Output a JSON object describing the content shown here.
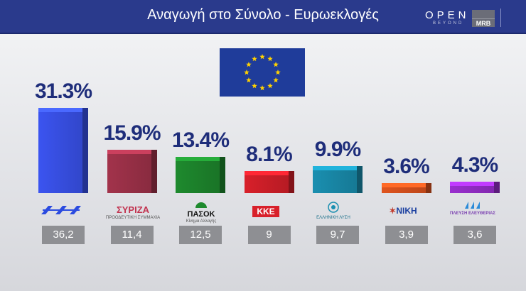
{
  "title": "Αναγωγή στο Σύνολο - Ευρωεκλογές",
  "broadcaster": {
    "name": "OPEN",
    "tagline": "BEYOND",
    "partner": "MRB"
  },
  "logos": {
    "nd": "",
    "syriza": "ΣΥΡΙΖΑ",
    "syriza_sub": "ΠΡΟΟΔΕΥΤΙΚΗ ΣΥΜΜΑΧΙΑ",
    "pasok": "ΠΑΣΟΚ",
    "pasok_sub": "Κίνημα Αλλαγής",
    "kke": "ΚΚΕ",
    "elliniki": "ΕΛΛΗΝΙΚΗ ΛΥΣΗ",
    "niki": "ΝΙΚΗ",
    "plefsi": "ΠΛΕΥΣΗ ΕΛΕΥΘΕΡΙΑΣ"
  },
  "chart_data": {
    "type": "bar",
    "categories": [
      "ΝΔ",
      "ΣΥΡΙΖΑ",
      "ΠΑΣΟΚ",
      "ΚΚΕ",
      "ΕΛΛΗΝΙΚΗ ΛΥΣΗ",
      "ΝΙΚΗ",
      "ΠΛΕΥΣΗ ΕΛΕΥΘΕΡΙΑΣ"
    ],
    "values": [
      31.3,
      15.9,
      13.4,
      8.1,
      9.9,
      3.6,
      4.3
    ],
    "labels": [
      "31.3%",
      "15.9%",
      "13.4%",
      "8.1%",
      "9.9%",
      "3.6%",
      "4.3%"
    ],
    "previous": [
      "36,2",
      "11,4",
      "12,5",
      "9",
      "9,7",
      "3,9",
      "3,6"
    ],
    "colors": [
      "#3b54f0",
      "#a2334b",
      "#1e8a2e",
      "#d8202a",
      "#1a8fb0",
      "#e0541e",
      "#9a2fcf"
    ],
    "ylim": [
      0,
      31.3
    ],
    "title": "Αναγωγή στο Σύνολο - Ευρωεκλογές",
    "xlabel": "",
    "ylabel": ""
  }
}
